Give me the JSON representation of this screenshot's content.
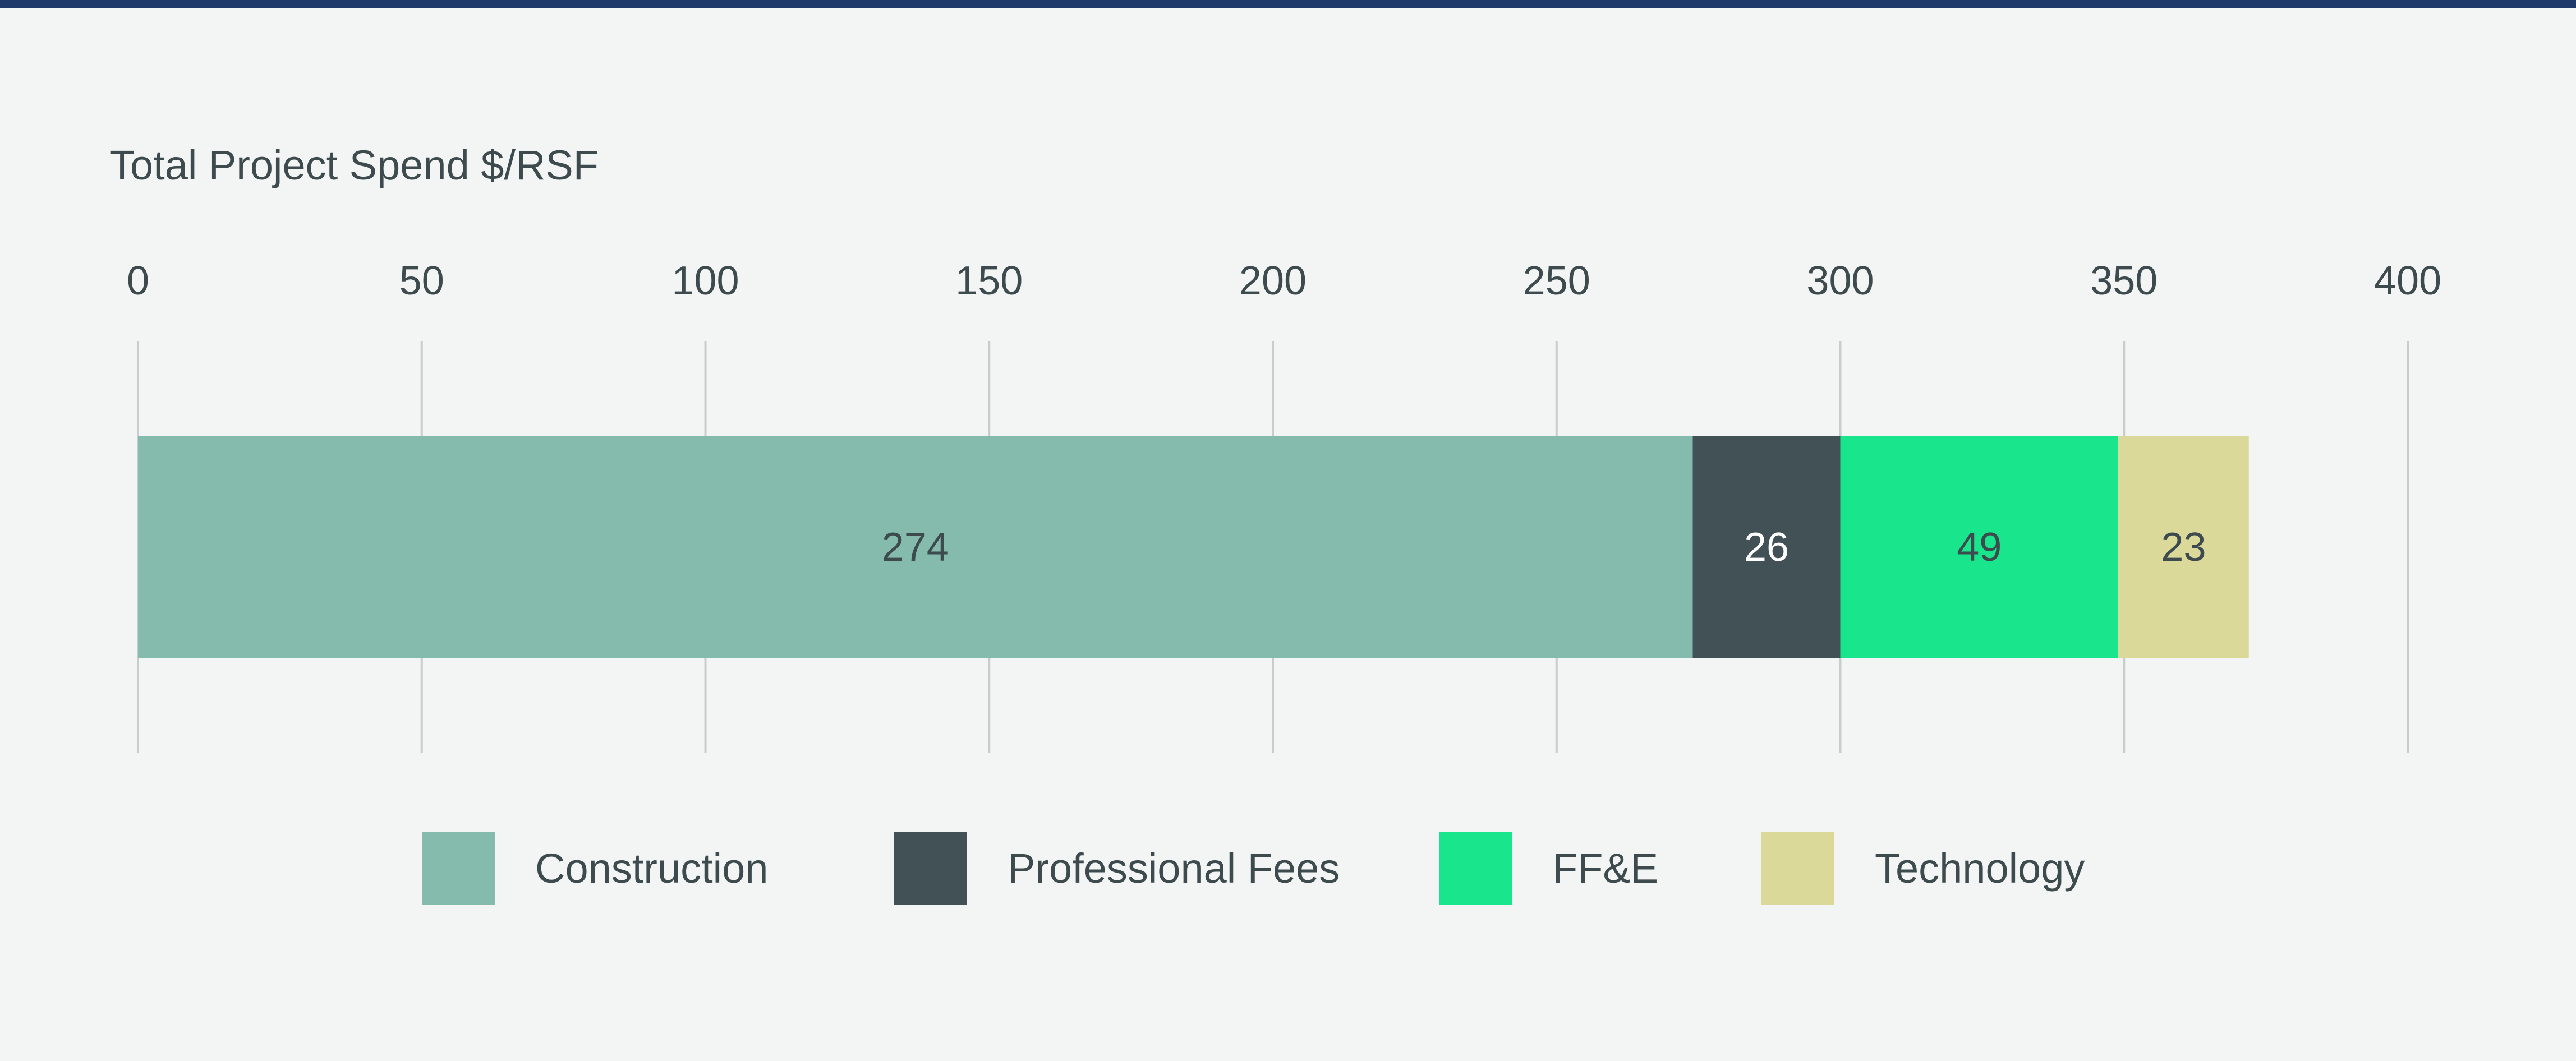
{
  "chart_data": {
    "type": "bar",
    "orientation": "horizontal",
    "stacked": true,
    "title": "Total Project Spend $/RSF",
    "xlabel": "",
    "ylabel": "",
    "xlim": [
      0,
      400
    ],
    "ticks": [
      "0",
      "50",
      "100",
      "150",
      "200",
      "250",
      "300",
      "350",
      "400"
    ],
    "grid": true,
    "legend_position": "bottom",
    "series": [
      {
        "name": "Construction",
        "value": 274,
        "label": "274",
        "color": "#84bbad",
        "label_color": "#3d4a4e"
      },
      {
        "name": "Professional Fees",
        "value": 26,
        "label": "26",
        "color": "#425156",
        "label_color": "#ffffff"
      },
      {
        "name": "FF&E",
        "value": 49,
        "label": "49",
        "color": "#19e68c",
        "label_color": "#3d4a4e"
      },
      {
        "name": "Technology",
        "value": 23,
        "label": "23",
        "color": "#dbd99a",
        "label_color": "#3d4a4e"
      }
    ]
  },
  "colors": {
    "top_rule": "#1f3a6a",
    "background": "#f3f5f4",
    "gridline": "#c8cdcc",
    "text": "#3d4a4e"
  }
}
